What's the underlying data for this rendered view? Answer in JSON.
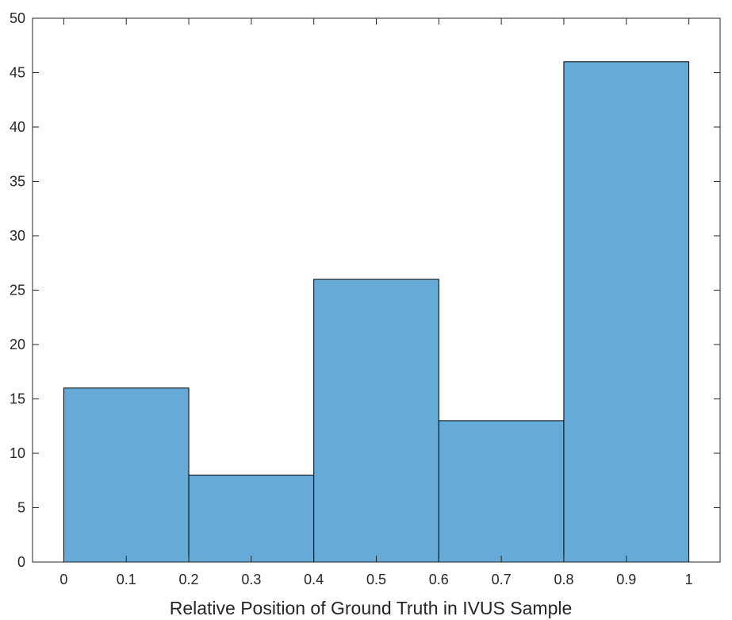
{
  "chart_data": {
    "type": "bar",
    "subtype": "histogram",
    "bin_edges": [
      0,
      0.2,
      0.4,
      0.6,
      0.8,
      1.0
    ],
    "values": [
      16,
      8,
      26,
      13,
      46
    ],
    "title": "",
    "xlabel": "Relative Position of Ground Truth in IVUS Sample",
    "ylabel": "",
    "xlim": [
      -0.05,
      1.05
    ],
    "ylim": [
      0,
      50
    ],
    "xticks": [
      0,
      0.1,
      0.2,
      0.3,
      0.4,
      0.5,
      0.6,
      0.7,
      0.8,
      0.9,
      1
    ],
    "xtick_labels": [
      "0",
      "0.1",
      "0.2",
      "0.3",
      "0.4",
      "0.5",
      "0.6",
      "0.7",
      "0.8",
      "0.9",
      "1"
    ],
    "yticks": [
      0,
      5,
      10,
      15,
      20,
      25,
      30,
      35,
      40,
      45,
      50
    ],
    "ytick_labels": [
      "0",
      "5",
      "10",
      "15",
      "20",
      "25",
      "30",
      "35",
      "40",
      "45",
      "50"
    ],
    "grid": false,
    "legend": "none",
    "colors": {
      "bar_fill": "#66aad7",
      "bar_edge": "#000000",
      "axis": "#262626"
    }
  }
}
